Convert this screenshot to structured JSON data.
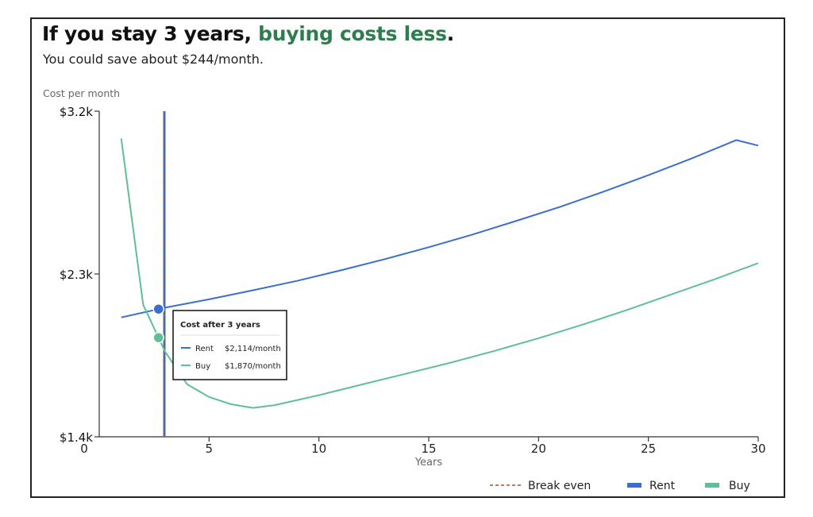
{
  "headline": {
    "text_plain": "If you stay 3 years, ",
    "text_accent": "buying costs less",
    "text_end": "."
  },
  "subhead": "You could save about $244/month.",
  "colors": {
    "rent": "#3a6fd0",
    "buy": "#5fbf95",
    "break_even": "#a0522d",
    "accent": "#2f7d4f"
  },
  "tooltip": {
    "title": "Cost after 3 years",
    "rows": [
      {
        "label": "Rent",
        "value": "$2,114/month"
      },
      {
        "label": "Buy",
        "value": "$1,870/month"
      }
    ]
  },
  "chart_data": {
    "type": "line",
    "ylabel": "Cost per month",
    "xlabel": "Years",
    "xlim": [
      0,
      30
    ],
    "ylim": [
      1400,
      3200
    ],
    "x_ticks": [
      {
        "value": 0,
        "label": "0"
      },
      {
        "value": 5,
        "label": "5"
      },
      {
        "value": 10,
        "label": "10"
      },
      {
        "value": 15,
        "label": "15"
      },
      {
        "value": 20,
        "label": "20"
      },
      {
        "value": 25,
        "label": "25"
      },
      {
        "value": 30,
        "label": "30"
      }
    ],
    "y_ticks": [
      {
        "value": 1400,
        "label": "$1.4k"
      },
      {
        "value": 2300,
        "label": "$2.3k"
      },
      {
        "value": 3200,
        "label": "$3.2k"
      }
    ],
    "break_even_year": 3,
    "marker_year": 2.7,
    "series": [
      {
        "name": "Rent",
        "color": "#3a6fd0",
        "x": [
          1,
          3,
          5,
          7,
          9,
          11,
          13,
          15,
          17,
          19,
          21,
          23,
          25,
          27,
          29,
          30
        ],
        "values": [
          2060,
          2114,
          2160,
          2210,
          2262,
          2320,
          2382,
          2448,
          2518,
          2594,
          2672,
          2757,
          2846,
          2940,
          3040,
          3010
        ]
      },
      {
        "name": "Buy",
        "color": "#5fbf95",
        "x": [
          1,
          2,
          3,
          4,
          5,
          6,
          7,
          8,
          10,
          12,
          14,
          16,
          18,
          20,
          22,
          24,
          26,
          28,
          30
        ],
        "values": [
          3050,
          2130,
          1870,
          1690,
          1620,
          1580,
          1560,
          1575,
          1630,
          1690,
          1750,
          1810,
          1875,
          1945,
          2020,
          2100,
          2185,
          2270,
          2360
        ]
      }
    ],
    "legend": {
      "position": "bottom-right",
      "items": [
        {
          "label": "Break even",
          "style": "dashed",
          "color": "#a0522d"
        },
        {
          "label": "Rent",
          "style": "solid",
          "color": "#3a6fd0"
        },
        {
          "label": "Buy",
          "style": "solid",
          "color": "#5fbf95"
        }
      ]
    }
  }
}
